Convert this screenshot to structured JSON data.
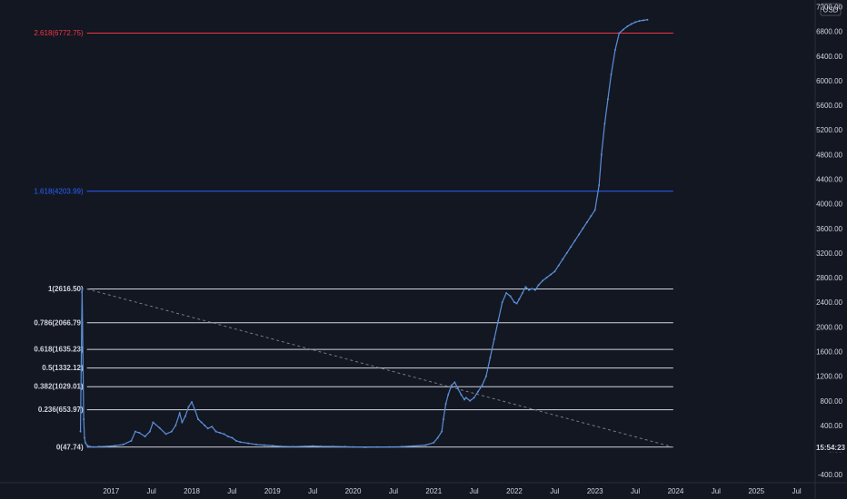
{
  "header": {
    "currency_label": "USD"
  },
  "clock": {
    "time": "15:54:23"
  },
  "colors": {
    "background": "#131722",
    "price_line": "#5b8fd6",
    "fib_main": "#d1d4dc",
    "fib_extension_1618": "#2962ff",
    "fib_extension_2618": "#f23645",
    "trendline": "#787b86",
    "axis_text": "#d1d4dc",
    "price_tag_bg": "#131722"
  },
  "chart_data": {
    "type": "line",
    "y_axis": {
      "ticks": [
        "7200.00",
        "6800.00",
        "6400.00",
        "6000.00",
        "5600.00",
        "5200.00",
        "4800.00",
        "4400.00",
        "4000.00",
        "3600.00",
        "3200.00",
        "2800.00",
        "2400.00",
        "2000.00",
        "1600.00",
        "1200.00",
        "800.00",
        "400.00",
        "0.00",
        "-400.00"
      ],
      "ylim": [
        -530,
        7310
      ]
    },
    "x_axis": {
      "ticks": [
        "2017",
        "Jul",
        "2018",
        "Jul",
        "2019",
        "Jul",
        "2020",
        "Jul",
        "2021",
        "Jul",
        "2022",
        "Jul",
        "2023",
        "Jul",
        "2024",
        "Jul",
        "2025",
        "Jul"
      ],
      "tick_dates": [
        2017.0,
        2017.5,
        2018.0,
        2018.5,
        2019.0,
        2019.5,
        2020.0,
        2020.5,
        2021.0,
        2021.5,
        2022.0,
        2022.5,
        2023.0,
        2023.5,
        2024.0,
        2024.5,
        2025.0,
        2025.5
      ],
      "xlim": [
        2016.58,
        2025.73
      ]
    },
    "fib_levels": [
      {
        "label": "0(47.74)",
        "value": 47.74,
        "group": "main"
      },
      {
        "label": "0.236(653.97)",
        "value": 653.97,
        "group": "main"
      },
      {
        "label": "0.382(1029.01)",
        "value": 1029.01,
        "group": "main"
      },
      {
        "label": "0.5(1332.12)",
        "value": 1332.12,
        "group": "main"
      },
      {
        "label": "0.618(1635.23)",
        "value": 1635.23,
        "group": "main"
      },
      {
        "label": "0.786(2066.79)",
        "value": 2066.79,
        "group": "main"
      },
      {
        "label": "1(2616.50)",
        "value": 2616.5,
        "group": "main"
      },
      {
        "label": "1.618(4203.99)",
        "value": 4203.99,
        "group": "ext1618"
      },
      {
        "label": "2.618(6772.75)",
        "value": 6772.75,
        "group": "ext2618"
      }
    ],
    "fib_range": {
      "x_start": 2016.7,
      "x_end": 2023.97
    },
    "trendline": {
      "x": [
        2016.7,
        2023.97
      ],
      "y": [
        2616.5,
        47.74
      ]
    },
    "series": [
      {
        "x": [
          2016.62,
          2016.64,
          2016.66,
          2016.67,
          2016.68,
          2016.7,
          2016.72,
          2016.74,
          2016.78,
          2016.85,
          2016.95,
          2017.05,
          2017.15,
          2017.25,
          2017.3,
          2017.35,
          2017.42,
          2017.48,
          2017.52,
          2017.6,
          2017.68,
          2017.75,
          2017.8,
          2017.85,
          2017.88,
          2017.92,
          2017.96,
          2018.0,
          2018.04,
          2018.08,
          2018.12,
          2018.16,
          2018.2,
          2018.25,
          2018.3,
          2018.35,
          2018.4,
          2018.45,
          2018.5,
          2018.55,
          2018.6,
          2018.7,
          2018.8,
          2018.9,
          2019.0,
          2019.1,
          2019.25,
          2019.4,
          2019.5,
          2019.6,
          2019.75,
          2019.9,
          2020.0,
          2020.15,
          2020.3,
          2020.45,
          2020.6,
          2020.75,
          2020.9,
          2021.0,
          2021.05,
          2021.1,
          2021.12,
          2021.15,
          2021.18,
          2021.22,
          2021.26,
          2021.3,
          2021.34,
          2021.38,
          2021.4,
          2021.45,
          2021.5,
          2021.55,
          2021.6,
          2021.65,
          2021.7,
          2021.75,
          2021.8,
          2021.85,
          2021.9,
          2021.95,
          2022.0,
          2022.03,
          2022.06,
          2022.1,
          2022.14,
          2022.18,
          2022.22,
          2022.26,
          2022.3,
          2022.35,
          2022.4,
          2022.45,
          2022.5,
          2022.55,
          2022.6,
          2022.65,
          2022.7,
          2022.75,
          2022.8,
          2022.85,
          2022.9,
          2022.95,
          2023.0,
          2023.05,
          2023.08,
          2023.12,
          2023.16,
          2023.2,
          2023.25,
          2023.3,
          2023.35,
          2023.4,
          2023.45,
          2023.5,
          2023.55,
          2023.6,
          2023.65
        ],
        "y": [
          300,
          2616,
          500,
          200,
          120,
          80,
          60,
          55,
          50,
          55,
          60,
          70,
          90,
          150,
          300,
          280,
          220,
          300,
          450,
          360,
          260,
          300,
          400,
          600,
          450,
          550,
          700,
          780,
          650,
          500,
          450,
          400,
          350,
          380,
          300,
          280,
          260,
          220,
          200,
          150,
          130,
          110,
          90,
          80,
          70,
          60,
          55,
          60,
          65,
          60,
          58,
          55,
          50,
          45,
          48,
          50,
          55,
          65,
          80,
          120,
          200,
          300,
          500,
          750,
          900,
          1050,
          1100,
          1000,
          900,
          820,
          850,
          800,
          850,
          950,
          1050,
          1200,
          1500,
          1800,
          2100,
          2400,
          2550,
          2500,
          2400,
          2380,
          2450,
          2550,
          2650,
          2600,
          2620,
          2600,
          2680,
          2750,
          2800,
          2850,
          2900,
          3000,
          3100,
          3200,
          3300,
          3400,
          3500,
          3600,
          3700,
          3800,
          3900,
          4300,
          4800,
          5300,
          5700,
          6100,
          6500,
          6772,
          6830,
          6880,
          6920,
          6950,
          6970,
          6980,
          6990
        ]
      }
    ],
    "price_tag": {
      "text": "15:54:23"
    }
  }
}
